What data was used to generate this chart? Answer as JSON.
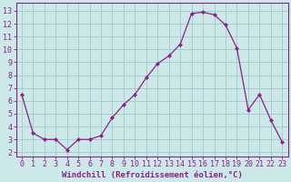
{
  "x": [
    0,
    1,
    2,
    3,
    4,
    5,
    6,
    7,
    8,
    9,
    10,
    11,
    12,
    13,
    14,
    15,
    16,
    17,
    18,
    19,
    20,
    21,
    22,
    23
  ],
  "y": [
    6.5,
    3.5,
    3.0,
    3.0,
    2.2,
    3.0,
    3.0,
    3.3,
    4.7,
    5.7,
    6.5,
    7.8,
    8.9,
    9.5,
    10.4,
    12.8,
    12.9,
    12.7,
    11.9,
    10.1,
    5.3,
    6.5,
    4.5,
    2.8
  ],
  "line_color": "#882288",
  "marker": "D",
  "marker_size": 2.2,
  "bg_color": "#cce8e8",
  "grid_color": "#aacccc",
  "xlabel": "Windchill (Refroidissement éolien,°C)",
  "xlabel_fontsize": 6.5,
  "y_ticks": [
    2,
    3,
    4,
    5,
    6,
    7,
    8,
    9,
    10,
    11,
    12,
    13
  ],
  "xlim": [
    -0.5,
    23.5
  ],
  "ylim": [
    1.7,
    13.6
  ],
  "tick_fontsize": 6.0,
  "line_color_spine": "#882288",
  "linewidth": 0.9
}
